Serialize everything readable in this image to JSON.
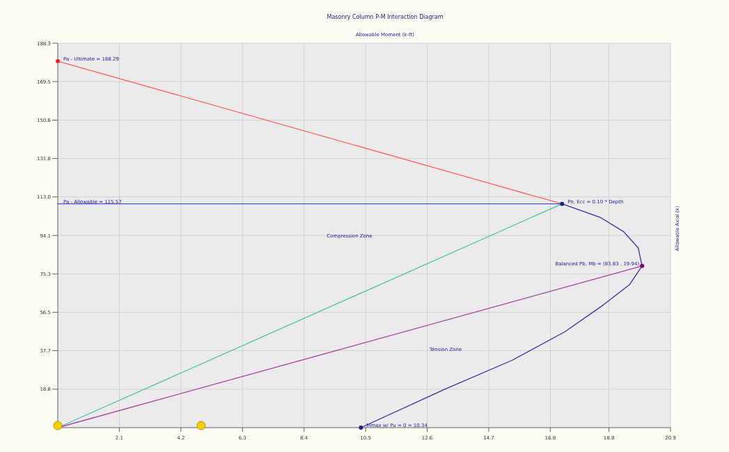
{
  "chart_data": {
    "type": "line",
    "title": "Masonry Column P-M Interaction Diagram",
    "xlabel": "Allowable Moment (k-ft)",
    "ylabel": "Allowable Axial (k)",
    "xlim": [
      0,
      20.9
    ],
    "xticks": [
      2.1,
      4.2,
      6.3,
      8.4,
      10.5,
      12.6,
      14.7,
      16.8,
      18.8,
      20.9
    ],
    "ylim": [
      0,
      188.3
    ],
    "yticks": [
      18.8,
      37.7,
      56.5,
      75.3,
      94.1,
      {
        "value": 113,
        "label": "113.0"
      },
      131.8,
      150.6,
      169.5,
      188.3
    ],
    "grid": true,
    "series": [
      {
        "color": "#ff6060",
        "x": [
          0,
          17.2
        ],
        "values": [
          179.5,
          109.6
        ]
      },
      {
        "color": "#5050d0",
        "x": [
          0,
          17.2
        ],
        "values": [
          109.6,
          109.6
        ]
      },
      {
        "color": "#50c0a0",
        "x": [
          0,
          17.2
        ],
        "values": [
          0,
          109.6
        ]
      },
      {
        "color": "#a040a0",
        "x": [
          0,
          19.93
        ],
        "values": [
          0,
          79.2
        ]
      },
      {
        "color": "#3030a0",
        "x": [
          17.2,
          18.5,
          19.3,
          19.8,
          19.93,
          19.5,
          18.6,
          17.3,
          15.5,
          13.2,
          10.34
        ],
        "values": [
          109.6,
          103,
          96,
          88,
          79.2,
          70,
          60,
          47,
          33,
          18.8,
          0
        ]
      },
      {
        "type": "scatter",
        "colors": [
          "#ff2020",
          "#202080",
          "#800060",
          "#202080"
        ],
        "x": [
          0,
          17.2,
          19.93,
          10.34
        ],
        "values": [
          179.5,
          109.6,
          79.2,
          0
        ]
      },
      {
        "type": "scatter",
        "color": "#f0d000",
        "x": [
          0,
          4.89
        ],
        "values": [
          1,
          1
        ]
      }
    ],
    "annotations": [
      {
        "text": "Pa - Ultimate = 188.29",
        "x": 0,
        "y": 179.5
      },
      {
        "text": "Pa - Allowable = 115.57",
        "x": 0,
        "y": 109.6
      },
      {
        "text": "Pn, Ecc = 0.10 * Depth",
        "x": 17.2,
        "y": 109.6
      },
      {
        "text": "Balanced Pb, Mb = (83.83 , 19.94)",
        "x": 19.93,
        "y": 79.2
      },
      {
        "text": "Mmax w/ Pu = 0 = 10.34",
        "x": 10.34,
        "y": 0
      },
      "Compression Zone",
      "Tension Zone"
    ]
  }
}
